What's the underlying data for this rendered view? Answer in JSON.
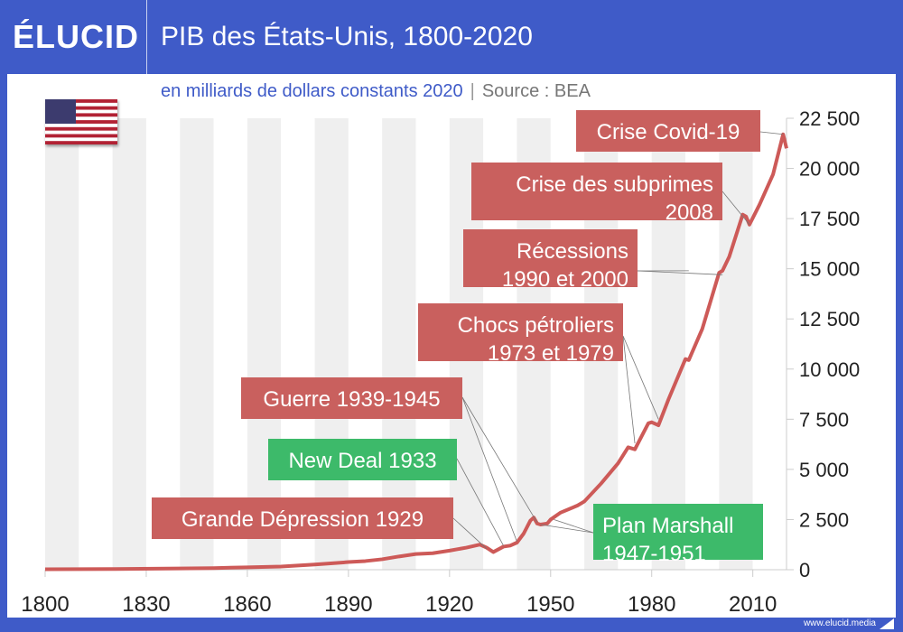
{
  "header": {
    "logo": "ÉLUCID",
    "title": "PIB des États-Unis, 1800-2020"
  },
  "subtitle": {
    "units": "en milliards de dollars constants 2020",
    "separator": "|",
    "source": "Source : BEA"
  },
  "footer": {
    "url": "www.elucid.media"
  },
  "colors": {
    "header": "#3f5bc8",
    "line": "#cd5a58",
    "red_box": "#c9605e",
    "green_box": "#3dba6a"
  },
  "chart_data": {
    "type": "line",
    "title": "PIB des États-Unis, 1800-2020",
    "ylabel": "en milliards de dollars constants 2020",
    "xlim": [
      1800,
      2020
    ],
    "ylim": [
      0,
      22500
    ],
    "x_ticks": [
      1800,
      1830,
      1860,
      1890,
      1920,
      1950,
      1980,
      2010
    ],
    "x_tick_labels": [
      "1800",
      "1830",
      "1860",
      "1890",
      "1920",
      "1950",
      "1980",
      "2010"
    ],
    "y_ticks": [
      0,
      2500,
      5000,
      7500,
      10000,
      12500,
      15000,
      17500,
      20000,
      22500
    ],
    "y_tick_labels": [
      "0",
      "2 500",
      "5 000",
      "7 500",
      "10 000",
      "12 500",
      "15 000",
      "17 500",
      "20 000",
      "22 500"
    ],
    "series": [
      {
        "name": "PIB",
        "x": [
          1800,
          1820,
          1840,
          1850,
          1860,
          1870,
          1880,
          1890,
          1895,
          1900,
          1905,
          1910,
          1915,
          1920,
          1925,
          1929,
          1931,
          1933,
          1936,
          1938,
          1940,
          1942,
          1944,
          1945,
          1946,
          1947,
          1949,
          1950,
          1953,
          1958,
          1960,
          1965,
          1970,
          1973,
          1975,
          1979,
          1980,
          1982,
          1985,
          1990,
          1991,
          1995,
          2000,
          2001,
          2003,
          2007,
          2008,
          2009,
          2012,
          2016,
          2019,
          2020
        ],
        "values": [
          20,
          35,
          60,
          80,
          120,
          160,
          260,
          380,
          430,
          520,
          660,
          780,
          820,
          950,
          1100,
          1250,
          1100,
          880,
          1150,
          1200,
          1350,
          1800,
          2450,
          2600,
          2300,
          2250,
          2300,
          2500,
          2850,
          3200,
          3400,
          4300,
          5300,
          6100,
          6000,
          7300,
          7350,
          7200,
          8500,
          10500,
          10450,
          12000,
          14800,
          14900,
          15600,
          17700,
          17600,
          17200,
          18200,
          19700,
          21700,
          21000
        ]
      }
    ],
    "annotations": [
      {
        "text": [
          "Crise Covid-19"
        ],
        "year": 2020,
        "kind": "crise"
      },
      {
        "text": [
          "Crise des subprimes",
          "2008"
        ],
        "year": 2008,
        "kind": "crise"
      },
      {
        "text": [
          "Récessions",
          "1990 et 2000"
        ],
        "year": 1990,
        "kind": "crise"
      },
      {
        "text": [
          "Chocs pétroliers",
          "1973 et 1979"
        ],
        "year": 1973,
        "kind": "crise"
      },
      {
        "text": [
          "Guerre 1939-1945"
        ],
        "year": 1939,
        "kind": "crise"
      },
      {
        "text": [
          "New Deal 1933"
        ],
        "year": 1933,
        "kind": "politique"
      },
      {
        "text": [
          "Grande Dépression 1929"
        ],
        "year": 1929,
        "kind": "crise"
      },
      {
        "text": [
          "Plan Marshall",
          "1947-1951"
        ],
        "year": 1947,
        "kind": "politique"
      }
    ]
  }
}
